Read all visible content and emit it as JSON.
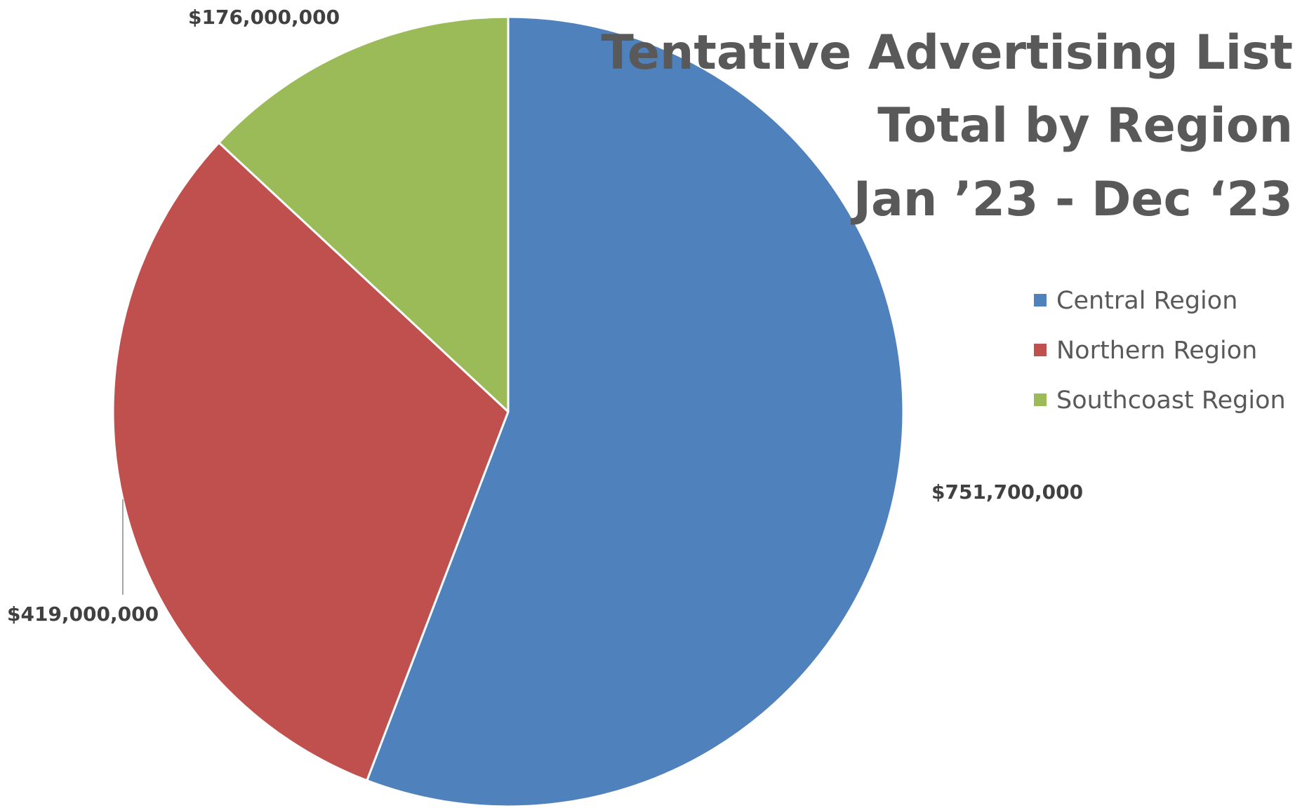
{
  "chart_data": {
    "type": "pie",
    "title_lines": [
      "Tentative Advertising List",
      "Total by Region",
      "Jan ’23 - Dec ‘23"
    ],
    "categories": [
      "Central Region",
      "Northern Region",
      "Southcoast Region"
    ],
    "values": [
      751700000,
      419000000,
      176000000
    ],
    "data_labels": [
      "$751,700,000",
      "$419,000,000",
      "$176,000,000"
    ],
    "colors": [
      "#4F81BD",
      "#C0504D",
      "#9BBB59"
    ],
    "legend_position": "right",
    "start_angle_deg": 0,
    "direction": "clockwise"
  }
}
